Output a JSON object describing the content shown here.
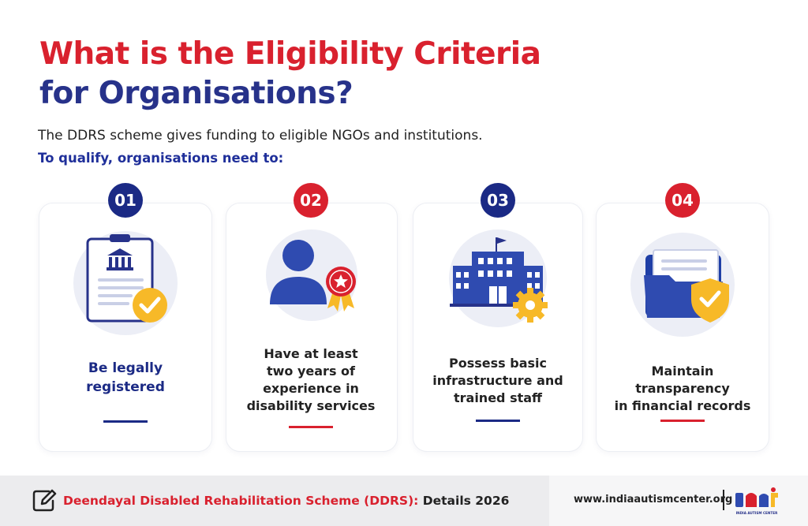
{
  "title": {
    "line1": "What is the Eligibility Criteria",
    "line2": "for Organisations?"
  },
  "intro": "The DDRS scheme gives funding to eligible NGOs and institutions.",
  "intro_strong": "To qualify, organisations need to:",
  "cards": [
    {
      "number": "01",
      "icon": "registered-document-icon",
      "lines": [
        "Be legally",
        "registered"
      ]
    },
    {
      "number": "02",
      "icon": "experienced-person-icon",
      "lines": [
        "Have at least",
        "two years of",
        "experience in",
        "disability services"
      ]
    },
    {
      "number": "03",
      "icon": "institution-building-icon",
      "lines": [
        "Possess basic",
        "infrastructure and",
        "trained staff"
      ]
    },
    {
      "number": "04",
      "icon": "secure-folder-icon",
      "lines": [
        "Maintain transparency",
        "in financial records"
      ]
    }
  ],
  "footer": {
    "scheme": "Deendayal Disabled Rehabilitation Scheme (DDRS):",
    "details": " Details 2026",
    "website": "www.indiaautismcenter.org",
    "logo_text": "INDIA AUTISM CENTER"
  },
  "colors": {
    "red": "#d9212e",
    "navy": "#1b2a85",
    "gold": "#f7b928"
  }
}
